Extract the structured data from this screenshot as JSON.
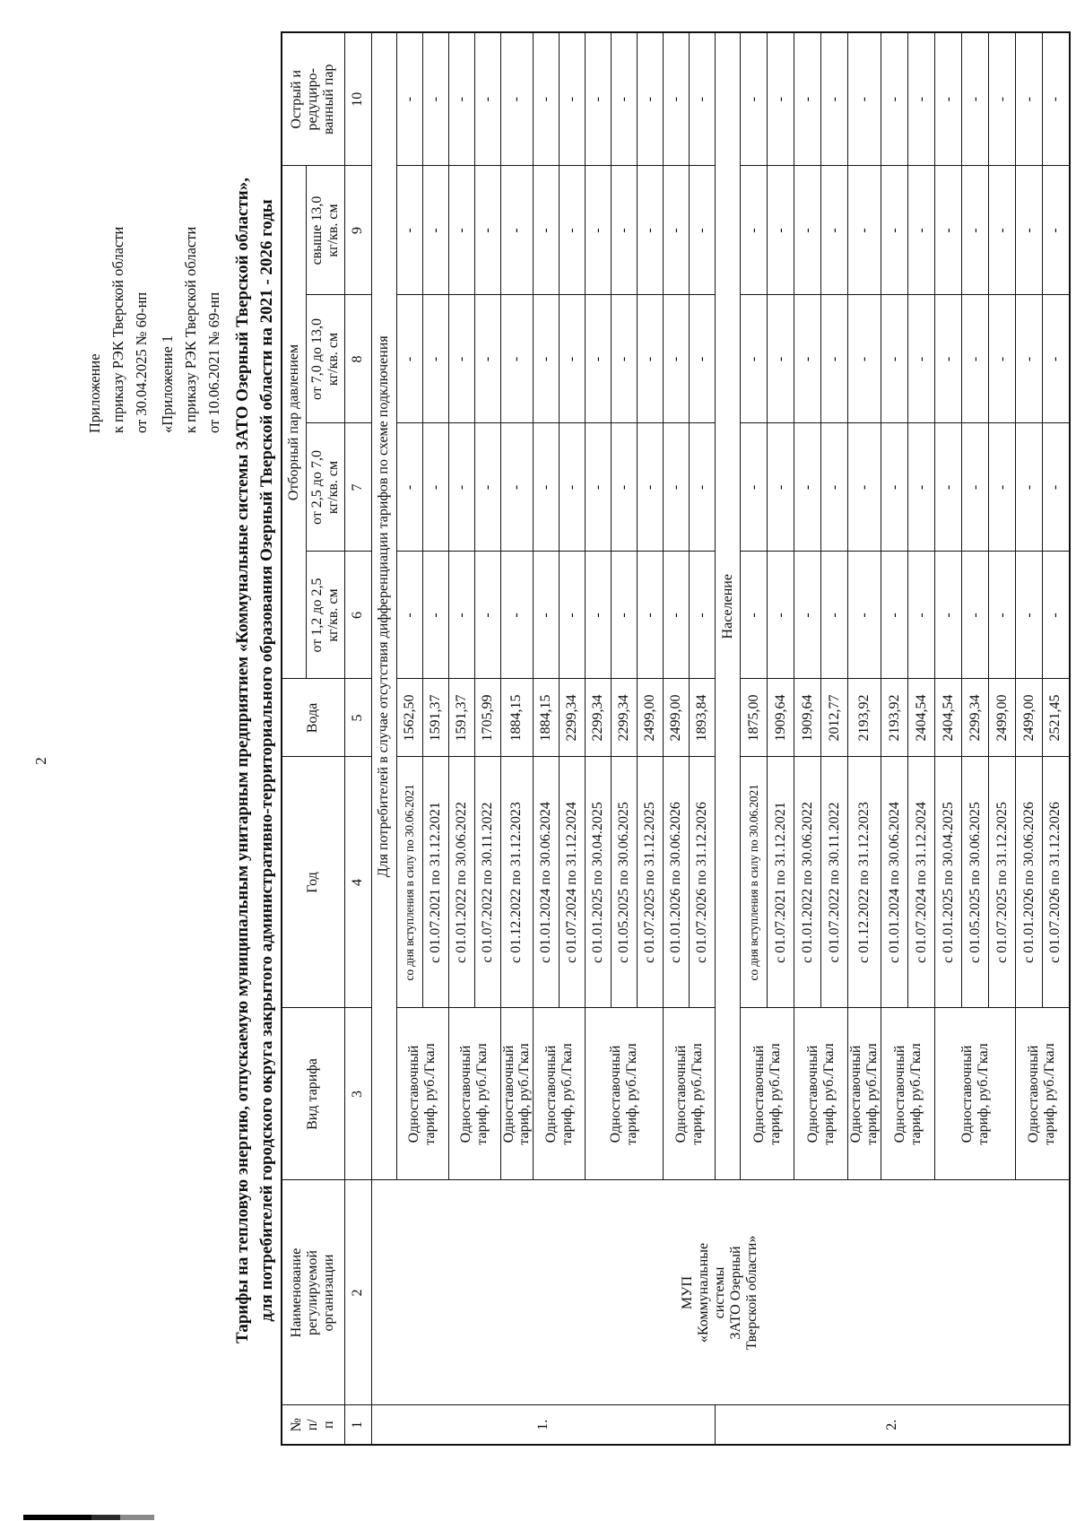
{
  "page_number": "2",
  "annotation": {
    "lines": [
      "Приложение",
      "к приказу РЭК Тверской области",
      "от 30.04.2025 № 60-нп",
      "«Приложение 1",
      "к приказу РЭК Тверской области",
      "от 10.06.2021 № 69-нп"
    ]
  },
  "title": {
    "line1": "Тарифы на тепловую энергию, отпускаемую муниципальным унитарным предприятием «Коммунальные системы ЗАТО Озерный Тверской области»,",
    "line2": "для потребителей городского округа закрытого административно-территориального образования Озерный Тверской области на 2021 - 2026 годы"
  },
  "table": {
    "headers": {
      "no": [
        "№",
        "п/",
        "п"
      ],
      "name": [
        "Наименование",
        "регулируемой",
        "организации"
      ],
      "tariff_type": "Вид тарифа",
      "year": "Год",
      "water": "Вода",
      "steam_super": "Отборный пар давлением",
      "steam_cols": [
        [
          "от 1,2 до 2,5",
          "кг/кв. см"
        ],
        [
          "от 2,5 до 7,0",
          "кг/кв. см"
        ],
        [
          "от 7,0 до 13,0",
          "кг/кв. см"
        ],
        [
          "свыше 13,0",
          "кг/кв. см"
        ]
      ],
      "sharp_steam": [
        "Острый и",
        "редуциро-",
        "ванный пар"
      ]
    },
    "col_numbers": [
      "1",
      "2",
      "3",
      "4",
      "5",
      "6",
      "7",
      "8",
      "9",
      "10"
    ],
    "org_name_lines": [
      "МУП",
      "«Коммунальные",
      "системы",
      "ЗАТО Озерный",
      "Тверской области»"
    ],
    "tariff_type_lines": [
      "Одноставочный",
      "тариф, руб./Гкал"
    ],
    "dash": "-",
    "sections": [
      {
        "row_no": "1.",
        "title": "Для потребителей в случае отсутствия дифференциации тарифов по схеме подключения",
        "groups": [
          2,
          2,
          1,
          2,
          3,
          2
        ],
        "rows": [
          {
            "period": "со дня вступления в силу по 30.06.2021",
            "water": "1562,50"
          },
          {
            "period": "с 01.07.2021 по 31.12.2021",
            "water": "1591,37"
          },
          {
            "period": "с 01.01.2022 по 30.06.2022",
            "water": "1591,37"
          },
          {
            "period": "с 01.07.2022 по 30.11.2022",
            "water": "1705,99"
          },
          {
            "period": "с 01.12.2022 по 31.12.2023",
            "water": "1884,15"
          },
          {
            "period": "с 01.01.2024 по 30.06.2024",
            "water": "1884,15"
          },
          {
            "period": "с 01.07.2024 по 31.12.2024",
            "water": "2299,34"
          },
          {
            "period": "с 01.01.2025 по 30.04.2025",
            "water": "2299,34"
          },
          {
            "period": "с 01.05.2025 по 30.06.2025",
            "water": "2299,34"
          },
          {
            "period": "с 01.07.2025 по 31.12.2025",
            "water": "2499,00"
          },
          {
            "period": "с 01.01.2026 по 30.06.2026",
            "water": "2499,00"
          },
          {
            "period": "с 01.07.2026 по 31.12.2026",
            "water": "1893,84"
          }
        ]
      },
      {
        "row_no": "2.",
        "title": "Население",
        "groups": [
          2,
          2,
          1,
          2,
          3,
          2
        ],
        "rows": [
          {
            "period": "со дня вступления в силу по 30.06.2021",
            "water": "1875,00"
          },
          {
            "period": "с 01.07.2021 по 31.12.2021",
            "water": "1909,64"
          },
          {
            "period": "с 01.01.2022 по 30.06.2022",
            "water": "1909,64"
          },
          {
            "period": "с 01.07.2022 по 30.11.2022",
            "water": "2012,77"
          },
          {
            "period": "с 01.12.2022 по 31.12.2023",
            "water": "2193,92"
          },
          {
            "period": "с 01.01.2024 по 30.06.2024",
            "water": "2193,92"
          },
          {
            "period": "с 01.07.2024 по 31.12.2024",
            "water": "2404,54"
          },
          {
            "period": "с 01.01.2025 по 30.04.2025",
            "water": "2404,54"
          },
          {
            "period": "с 01.05.2025 по 30.06.2025",
            "water": "2299,34"
          },
          {
            "period": "с 01.07.2025 по 31.12.2025",
            "water": "2499,00"
          },
          {
            "period": "с 01.01.2026 по 30.06.2026",
            "water": "2499,00"
          },
          {
            "period": "с 01.07.2026 по 31.12.2026",
            "water": "2521,45"
          }
        ]
      }
    ]
  }
}
